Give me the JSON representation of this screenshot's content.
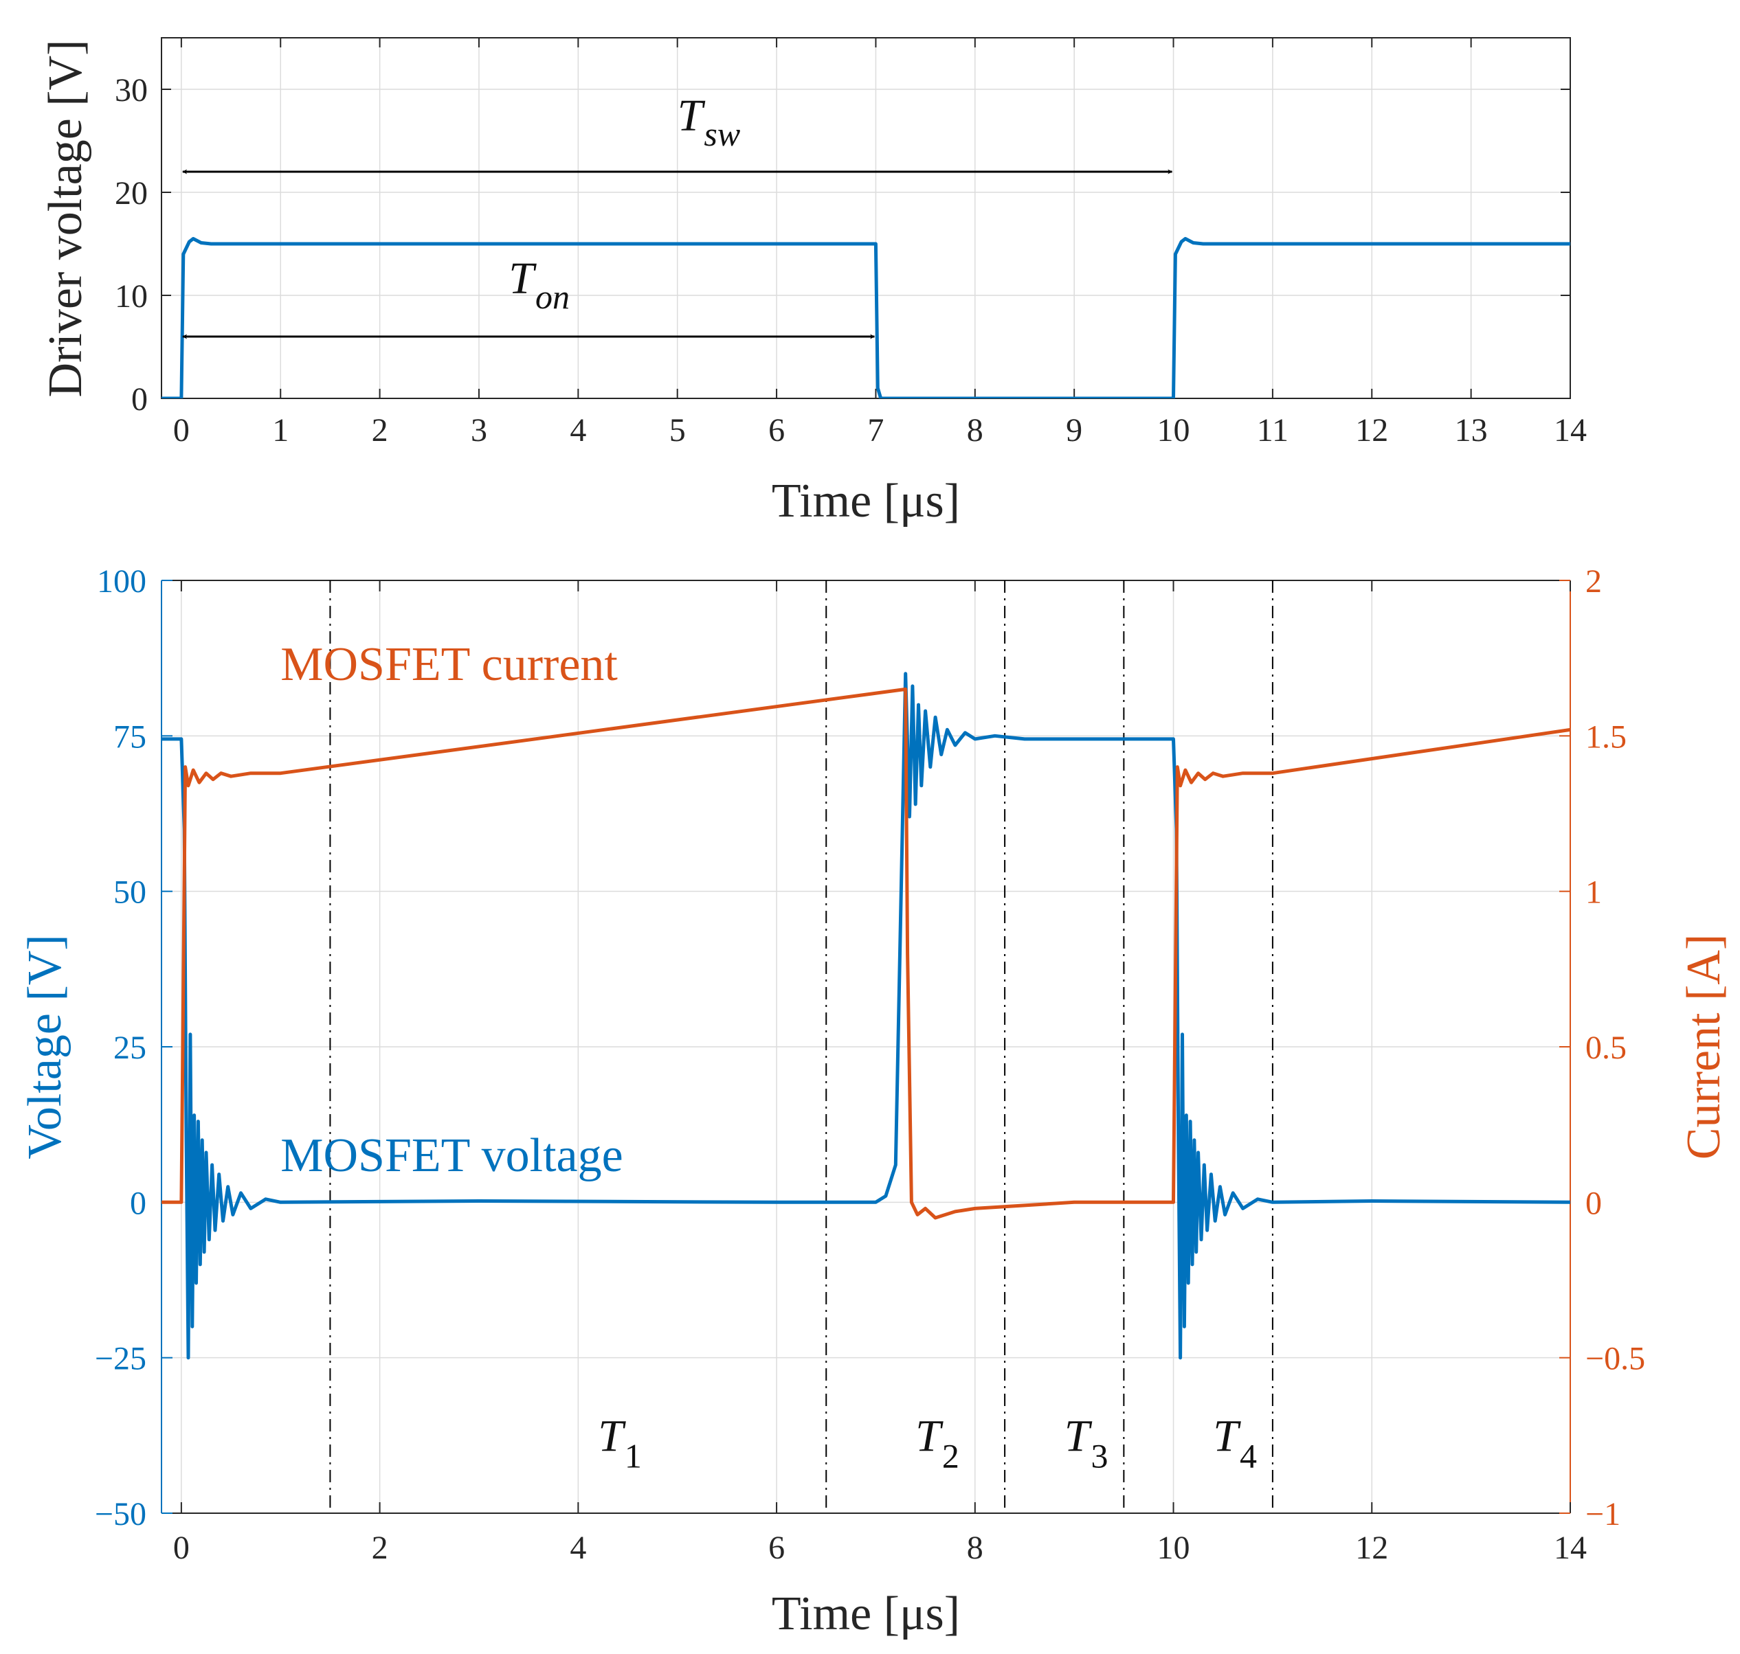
{
  "chart_data": [
    {
      "type": "line",
      "ylabel": "Driver voltage [V]",
      "xlabel": "Time [μs]",
      "xlim": [
        -0.2,
        14
      ],
      "ylim": [
        0,
        35
      ],
      "xticks": [
        0,
        1,
        2,
        3,
        4,
        5,
        6,
        7,
        8,
        9,
        10,
        11,
        12,
        13,
        14
      ],
      "xtick_labels": [
        "0",
        "1",
        "2",
        "3",
        "4",
        "5",
        "6",
        "7",
        "8",
        "9",
        "10",
        "11",
        "12",
        "13",
        "14"
      ],
      "yticks": [
        0,
        10,
        20,
        30
      ],
      "ytick_labels": [
        "0",
        "10",
        "20",
        "30"
      ],
      "grid": true,
      "colors": {
        "series": "#0072BD",
        "annotation": "#000000"
      },
      "series": [
        {
          "name": "Driver voltage",
          "x": [
            -0.2,
            0.0,
            0.02,
            0.08,
            0.12,
            0.2,
            0.3,
            7.0,
            7.02,
            7.05,
            10.0,
            10.02,
            10.08,
            10.12,
            10.2,
            10.3,
            14.0
          ],
          "y": [
            0,
            0,
            14,
            15.2,
            15.5,
            15.1,
            15,
            15,
            1,
            0,
            0,
            14,
            15.2,
            15.5,
            15.1,
            15,
            15
          ]
        }
      ],
      "annotations": [
        {
          "text": "T",
          "subscript": "sw",
          "from_x": 0,
          "to_x": 10,
          "at_y": 22,
          "label_x": 5,
          "label_y": 26
        },
        {
          "text": "T",
          "subscript": "on",
          "from_x": 0,
          "to_x": 7,
          "at_y": 6,
          "label_x": 3.3,
          "label_y": 10.2
        }
      ]
    },
    {
      "type": "line",
      "xlabel": "Time [μs]",
      "ylabel": "Voltage [V]",
      "ylabel_right": "Current [A]",
      "xlim": [
        -0.2,
        14
      ],
      "ylim": [
        -50,
        100
      ],
      "ylim_right": [
        -1,
        2
      ],
      "xticks": [
        0,
        2,
        4,
        6,
        8,
        10,
        12,
        14
      ],
      "xtick_labels": [
        "0",
        "2",
        "4",
        "6",
        "8",
        "10",
        "12",
        "14"
      ],
      "yticks": [
        -50,
        -25,
        0,
        25,
        50,
        75,
        100
      ],
      "ytick_labels": [
        "−50",
        "−25",
        "0",
        "25",
        "50",
        "75",
        "100"
      ],
      "yticks_right": [
        -1,
        -0.5,
        0,
        0.5,
        1,
        1.5,
        2
      ],
      "ytick_labels_right": [
        "−1",
        "−0.5",
        "0",
        "0.5",
        "1",
        "1.5",
        "2"
      ],
      "grid": true,
      "colors": {
        "voltage": "#0072BD",
        "current": "#D95319",
        "divider": "#000000"
      },
      "series": [
        {
          "name": "MOSFET voltage",
          "axis": "left",
          "label": "MOSFET voltage",
          "label_x": 1.0,
          "label_y": 5,
          "x": [
            -0.2,
            0.0,
            0.03,
            0.05,
            0.07,
            0.09,
            0.11,
            0.13,
            0.15,
            0.17,
            0.19,
            0.21,
            0.23,
            0.25,
            0.28,
            0.31,
            0.34,
            0.38,
            0.42,
            0.47,
            0.52,
            0.6,
            0.7,
            0.85,
            1.0,
            3.0,
            6.0,
            7.0,
            7.1,
            7.2,
            7.3,
            7.34,
            7.37,
            7.4,
            7.43,
            7.46,
            7.5,
            7.55,
            7.6,
            7.66,
            7.72,
            7.8,
            7.9,
            8.0,
            8.2,
            8.5,
            9.0,
            9.5,
            10.0,
            10.03,
            10.05,
            10.07,
            10.09,
            10.11,
            10.13,
            10.15,
            10.17,
            10.19,
            10.21,
            10.23,
            10.25,
            10.28,
            10.31,
            10.34,
            10.38,
            10.42,
            10.47,
            10.52,
            10.6,
            10.7,
            10.85,
            11.0,
            12.0,
            14.0
          ],
          "y": [
            74.5,
            74.5,
            60,
            10,
            -25,
            27,
            -20,
            14,
            -13,
            13,
            -10,
            10,
            -8,
            8,
            -6,
            6,
            -4.5,
            4.5,
            -3,
            2.5,
            -2,
            1.5,
            -1,
            0.5,
            0,
            0.2,
            0,
            0,
            1,
            6,
            85,
            62,
            83,
            64,
            80,
            67,
            79,
            70,
            78,
            72,
            76,
            73.5,
            75.5,
            74.5,
            75,
            74.5,
            74.5,
            74.5,
            74.5,
            60,
            10,
            -25,
            27,
            -20,
            14,
            -13,
            13,
            -10,
            10,
            -8,
            8,
            -6,
            6,
            -4.5,
            4.5,
            -3,
            2.5,
            -2,
            1.5,
            -1,
            0.5,
            0,
            0.2,
            0
          ]
        },
        {
          "name": "MOSFET current",
          "axis": "right",
          "label": "MOSFET current",
          "label_x": 1.0,
          "label_y_right": 1.68,
          "x": [
            -0.2,
            0.0,
            0.02,
            0.04,
            0.07,
            0.12,
            0.18,
            0.25,
            0.32,
            0.4,
            0.5,
            0.7,
            1.0,
            7.3,
            7.32,
            7.36,
            7.42,
            7.5,
            7.6,
            7.8,
            8.0,
            8.5,
            9.0,
            9.5,
            10.0,
            10.02,
            10.04,
            10.07,
            10.12,
            10.18,
            10.25,
            10.32,
            10.4,
            10.5,
            10.7,
            11.0,
            14.0
          ],
          "y": [
            0,
            0,
            0.7,
            1.4,
            1.34,
            1.39,
            1.35,
            1.38,
            1.36,
            1.38,
            1.37,
            1.38,
            1.38,
            1.65,
            0.8,
            0,
            -0.04,
            -0.02,
            -0.05,
            -0.03,
            -0.02,
            -0.01,
            0,
            0,
            0,
            0.7,
            1.4,
            1.34,
            1.39,
            1.35,
            1.38,
            1.36,
            1.38,
            1.37,
            1.38,
            1.38,
            1.52
          ]
        }
      ],
      "dividers": [
        1.5,
        6.5,
        8.3,
        9.5,
        11.0
      ],
      "interval_labels": [
        {
          "text": "T",
          "subscript": "1",
          "x": 4.2,
          "y": -40
        },
        {
          "text": "T",
          "subscript": "2",
          "x": 7.4,
          "y": -40
        },
        {
          "text": "T",
          "subscript": "3",
          "x": 8.9,
          "y": -40
        },
        {
          "text": "T",
          "subscript": "4",
          "x": 10.4,
          "y": -40
        }
      ]
    }
  ]
}
